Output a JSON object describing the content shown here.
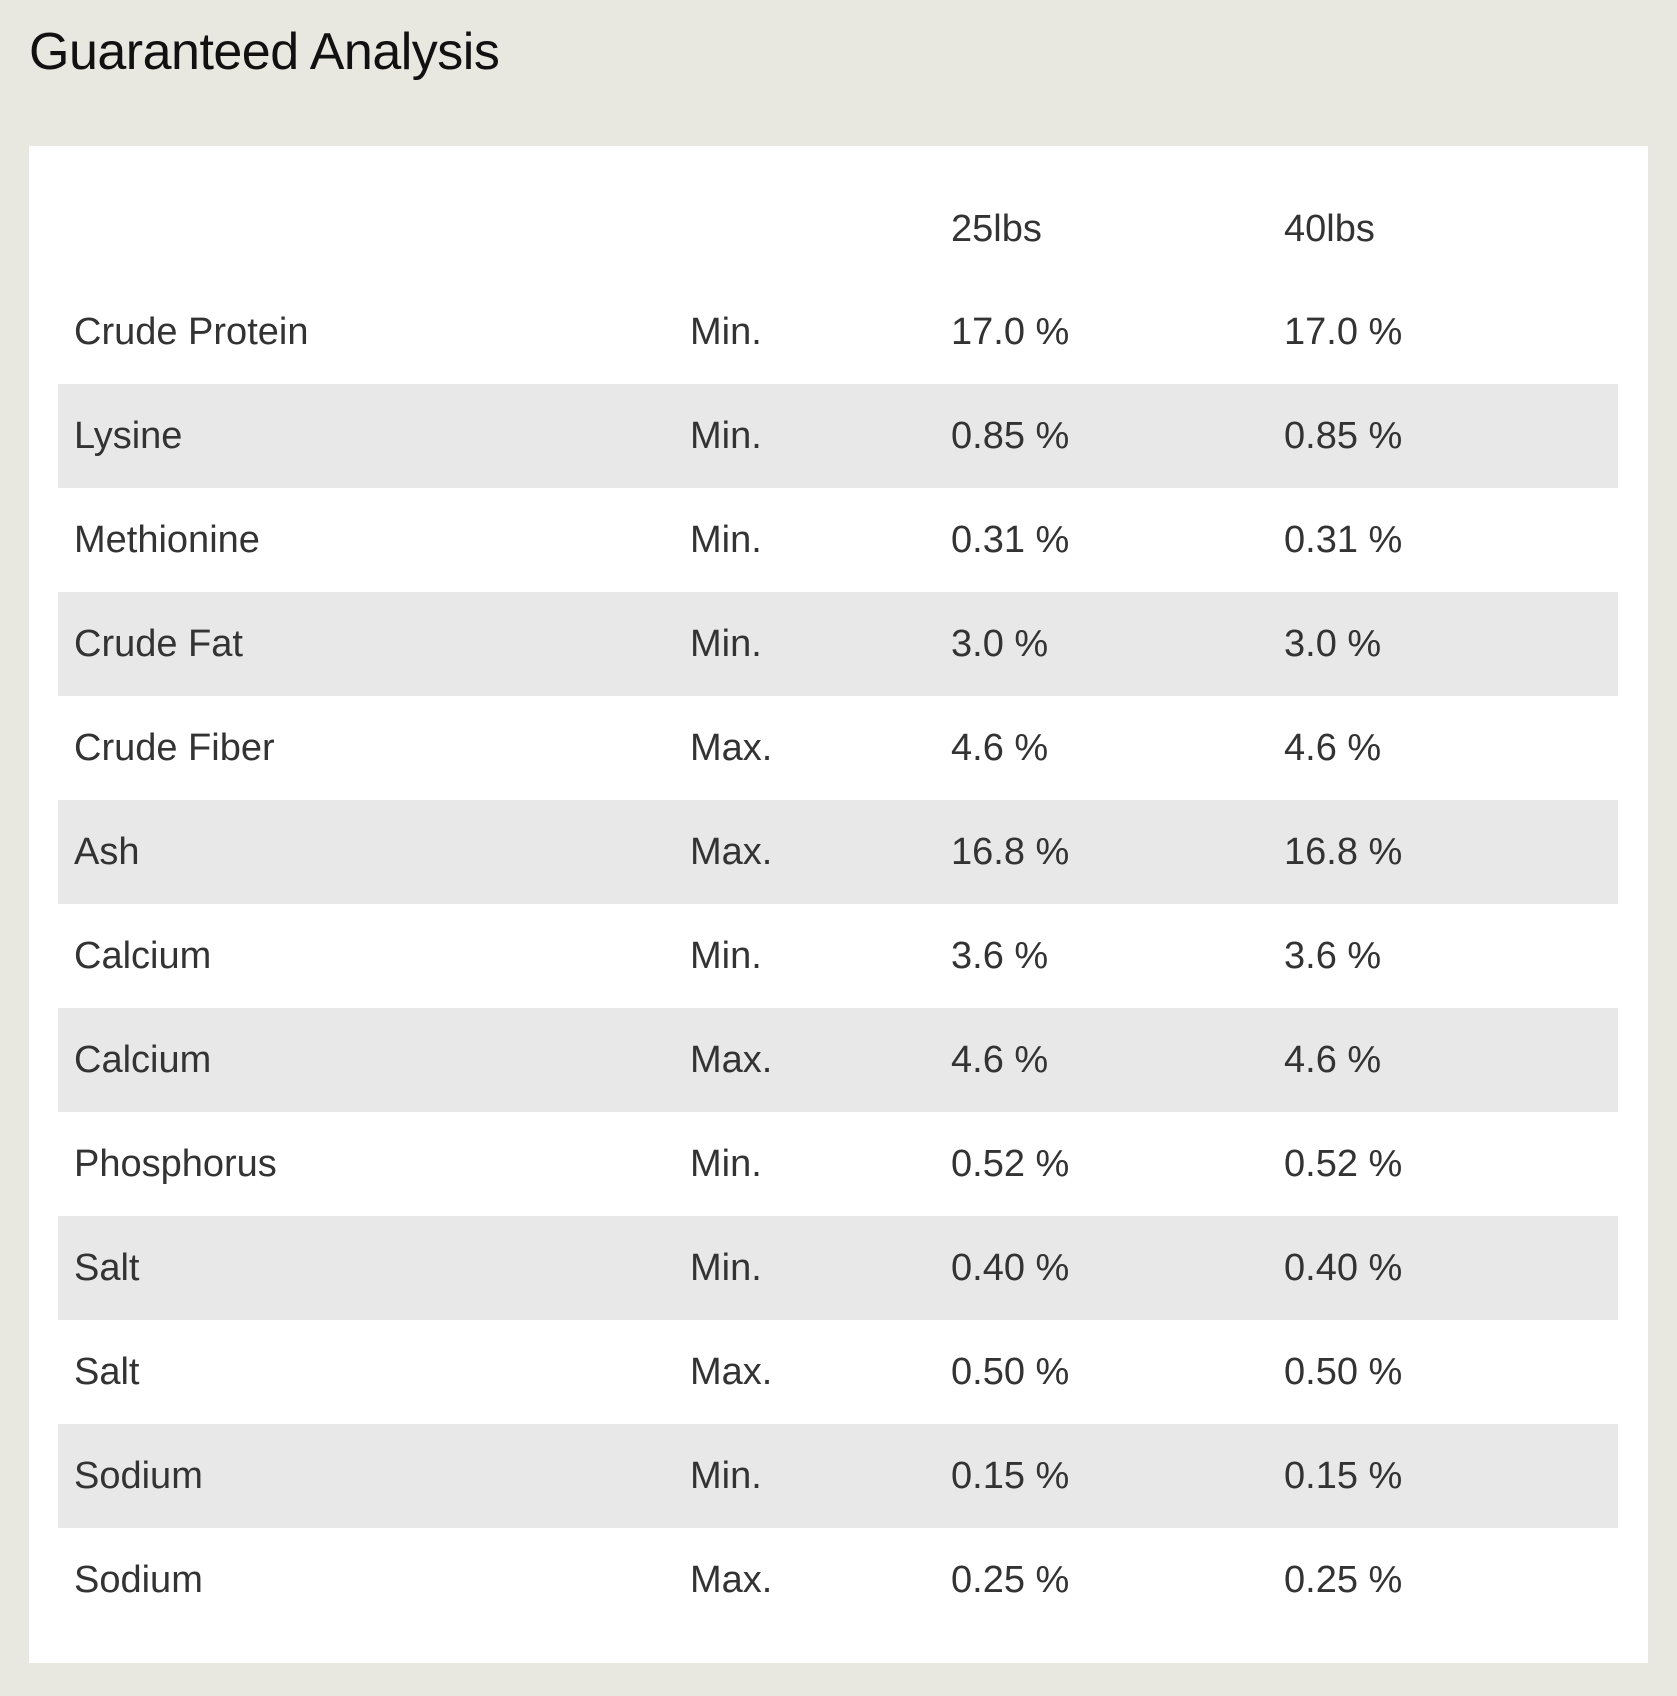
{
  "title": "Guaranteed Analysis",
  "columns": [
    "",
    "",
    "25lbs",
    "40lbs"
  ],
  "rows": [
    {
      "nutrient": "Crude Protein",
      "qualifier": "Min.",
      "v25": "17.0 %",
      "v40": "17.0 %"
    },
    {
      "nutrient": "Lysine",
      "qualifier": "Min.",
      "v25": "0.85 %",
      "v40": "0.85 %"
    },
    {
      "nutrient": "Methionine",
      "qualifier": "Min.",
      "v25": "0.31 %",
      "v40": "0.31 %"
    },
    {
      "nutrient": "Crude Fat",
      "qualifier": "Min.",
      "v25": "3.0 %",
      "v40": "3.0 %"
    },
    {
      "nutrient": "Crude Fiber",
      "qualifier": "Max.",
      "v25": "4.6 %",
      "v40": "4.6 %"
    },
    {
      "nutrient": "Ash",
      "qualifier": "Max.",
      "v25": "16.8 %",
      "v40": "16.8 %"
    },
    {
      "nutrient": "Calcium",
      "qualifier": "Min.",
      "v25": "3.6 %",
      "v40": "3.6 %"
    },
    {
      "nutrient": "Calcium",
      "qualifier": "Max.",
      "v25": "4.6 %",
      "v40": "4.6 %"
    },
    {
      "nutrient": "Phosphorus",
      "qualifier": "Min.",
      "v25": "0.52 %",
      "v40": "0.52 %"
    },
    {
      "nutrient": "Salt",
      "qualifier": "Min.",
      "v25": "0.40 %",
      "v40": "0.40 %"
    },
    {
      "nutrient": "Salt",
      "qualifier": "Max.",
      "v25": "0.50 %",
      "v40": "0.50 %"
    },
    {
      "nutrient": "Sodium",
      "qualifier": "Min.",
      "v25": "0.15 %",
      "v40": "0.15 %"
    },
    {
      "nutrient": "Sodium",
      "qualifier": "Max.",
      "v25": "0.25 %",
      "v40": "0.25 %"
    }
  ]
}
